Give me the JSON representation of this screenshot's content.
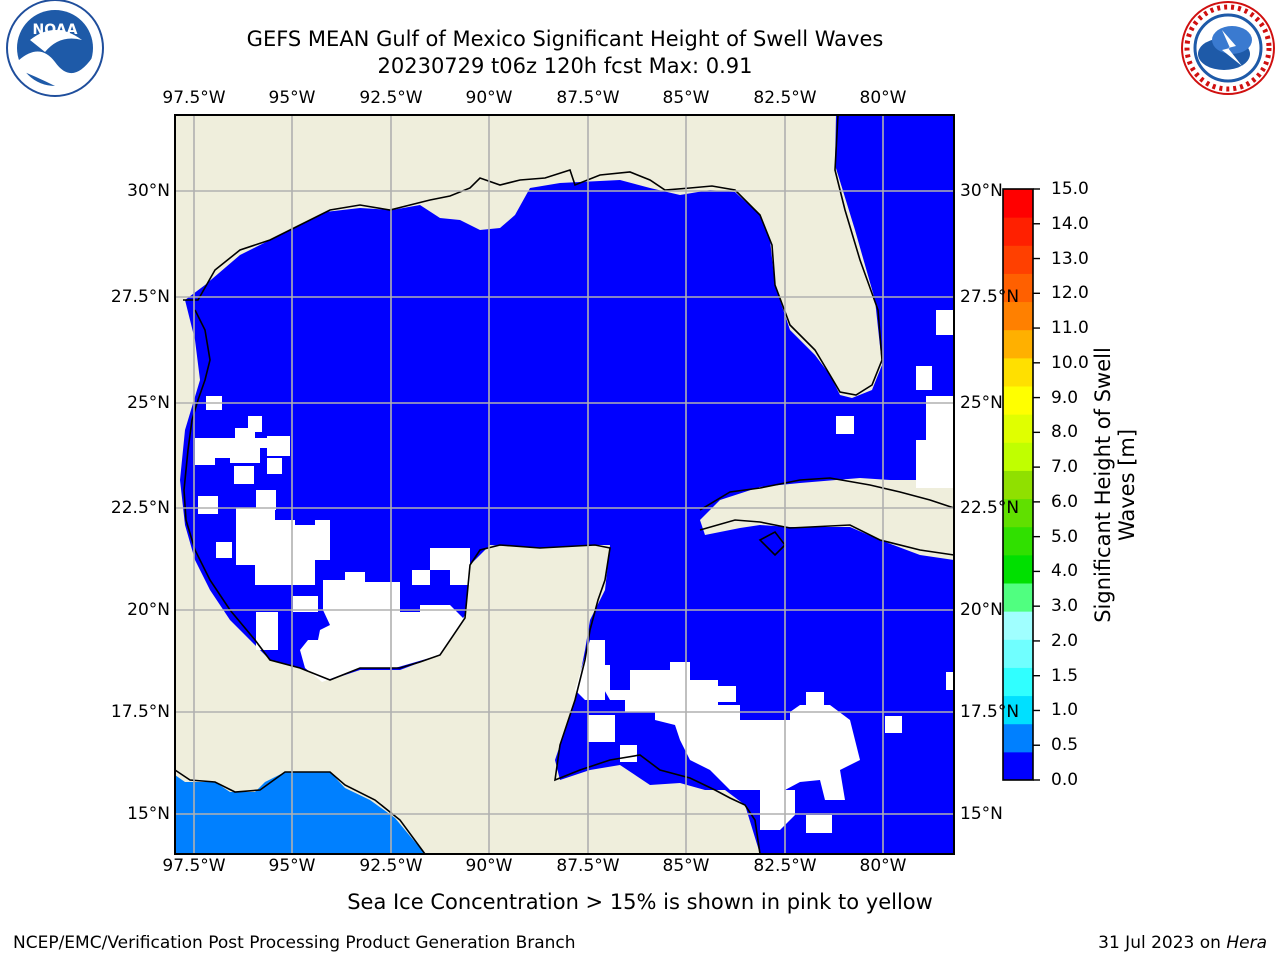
{
  "title": {
    "line1": "GEFS MEAN Gulf of Mexico Significant Height of Swell Waves",
    "line2": "20230729 t06z 120h fcst   Max: 0.91"
  },
  "logos": {
    "left": {
      "icon": "noaa-logo",
      "text": "NOAA",
      "ring": "NATIONAL OCEANIC AND ATMOSPHERIC ADMINISTRATION · U.S. DEPARTMENT OF COMMERCE"
    },
    "right": {
      "icon": "nws-logo",
      "ring": "NATIONAL WEATHER SERVICE"
    }
  },
  "map": {
    "lon_range": [
      -98.0,
      -78.2
    ],
    "lat_range": [
      14.0,
      31.8
    ],
    "lon_ticks": [
      "97.5°W",
      "95°W",
      "92.5°W",
      "90°W",
      "87.5°W",
      "85°W",
      "82.5°W",
      "80°W"
    ],
    "lat_ticks": [
      "30°N",
      "27.5°N",
      "25°N",
      "22.5°N",
      "20°N",
      "17.5°N",
      "15°N"
    ],
    "colors": {
      "land": "#efeedc",
      "ocean": "#0000ff",
      "band_0_5_1_0": "#0080ff",
      "grid": "#b0b0b0",
      "coast": "#000000"
    }
  },
  "colorbar": {
    "title": "Significant Height of Swell\nWaves [m]",
    "ticks": [
      "15.0",
      "14.0",
      "13.0",
      "12.0",
      "11.0",
      "10.0",
      "9.0",
      "8.0",
      "7.0",
      "6.0",
      "5.0",
      "4.0",
      "3.0",
      "2.0",
      "1.5",
      "1.0",
      "0.5",
      "0.0"
    ],
    "colors": [
      "#0000ff",
      "#0080ff",
      "#00e0ff",
      "#30ffff",
      "#70ffff",
      "#a0ffff",
      "#50ff80",
      "#00e000",
      "#30e000",
      "#60e000",
      "#90e000",
      "#c0ff00",
      "#e0ff00",
      "#ffff00",
      "#ffe000",
      "#ffb000",
      "#ff8000",
      "#ff6000",
      "#ff4000",
      "#ff2000",
      "#ff0000"
    ]
  },
  "note": "Sea Ice Concentration > 15% is shown in pink to yellow",
  "footer": {
    "left": "NCEP/EMC/Verification Post Processing Product Generation Branch",
    "right_date": "31 Jul 2023 on ",
    "right_machine": "Hera"
  }
}
